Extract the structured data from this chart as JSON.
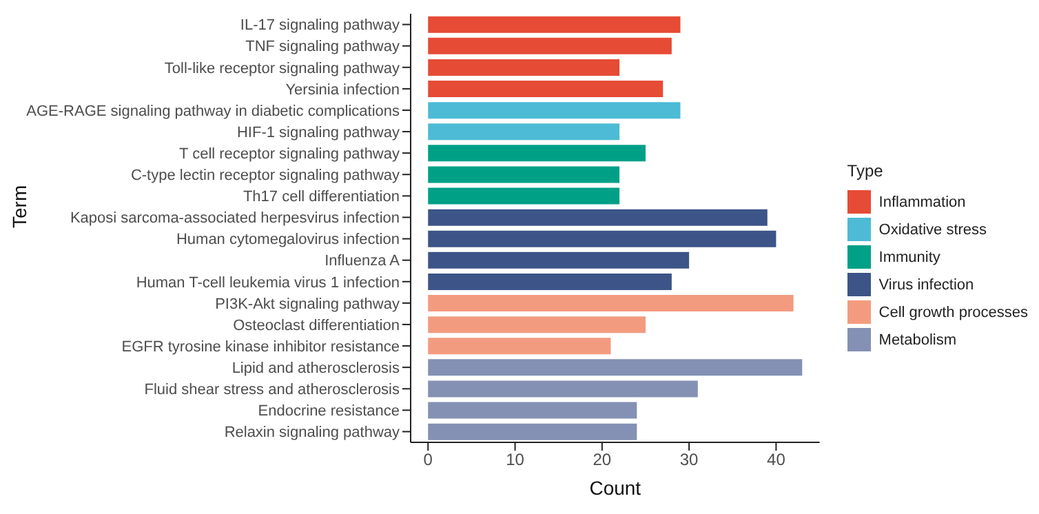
{
  "chart_data": {
    "type": "bar",
    "orientation": "horizontal",
    "stacked": true,
    "xlabel": "Count",
    "ylabel": "Term",
    "legend_title": "Type",
    "legend": "right",
    "grid": false,
    "categories": [
      "IL-17 signaling pathway",
      "TNF signaling pathway",
      "Toll-like receptor signaling pathway",
      "Yersinia infection",
      "AGE-RAGE signaling pathway in diabetic complications",
      "HIF-1 signaling pathway",
      "T cell receptor signaling pathway",
      "C-type lectin receptor signaling pathway",
      "Th17 cell differentiation",
      "Kaposi sarcoma-associated herpesvirus infection",
      "Human cytomegalovirus infection",
      "Influenza A",
      "Human T-cell leukemia virus 1 infection",
      "PI3K-Akt signaling pathway",
      "Osteoclast differentiation",
      "EGFR tyrosine kinase inhibitor resistance",
      "Lipid and atherosclerosis",
      "Fluid shear stress and atherosclerosis",
      "Endocrine resistance",
      "Relaxin signaling pathway"
    ],
    "xlim": [
      -2,
      45
    ],
    "xticks": [
      0,
      10,
      20,
      30,
      40
    ],
    "series": [
      {
        "name": "Inflammation",
        "color": "#e64b35",
        "values": [
          29,
          28,
          22,
          27,
          null,
          null,
          null,
          null,
          null,
          null,
          null,
          null,
          null,
          null,
          null,
          null,
          null,
          null,
          null,
          null
        ]
      },
      {
        "name": "Oxidative stress",
        "color": "#4dbbd5",
        "values": [
          null,
          null,
          null,
          null,
          29,
          22,
          null,
          null,
          null,
          null,
          null,
          null,
          null,
          null,
          null,
          null,
          null,
          null,
          null,
          null
        ]
      },
      {
        "name": "Immunity",
        "color": "#00a087",
        "values": [
          null,
          null,
          null,
          null,
          null,
          null,
          25,
          22,
          22,
          null,
          null,
          null,
          null,
          null,
          null,
          null,
          null,
          null,
          null,
          null
        ]
      },
      {
        "name": "Virus infection",
        "color": "#3c5488",
        "values": [
          null,
          null,
          null,
          null,
          null,
          null,
          null,
          null,
          null,
          39,
          40,
          30,
          28,
          null,
          null,
          null,
          null,
          null,
          null,
          null
        ]
      },
      {
        "name": "Cell growth processes",
        "color": "#f39b7f",
        "values": [
          null,
          null,
          null,
          null,
          null,
          null,
          null,
          null,
          null,
          null,
          null,
          null,
          null,
          42,
          25,
          21,
          null,
          null,
          null,
          null
        ]
      },
      {
        "name": "Metabolism",
        "color": "#8491b4",
        "values": [
          null,
          null,
          null,
          null,
          null,
          null,
          null,
          null,
          null,
          null,
          null,
          null,
          null,
          null,
          null,
          null,
          43,
          31,
          24,
          24
        ]
      }
    ]
  }
}
